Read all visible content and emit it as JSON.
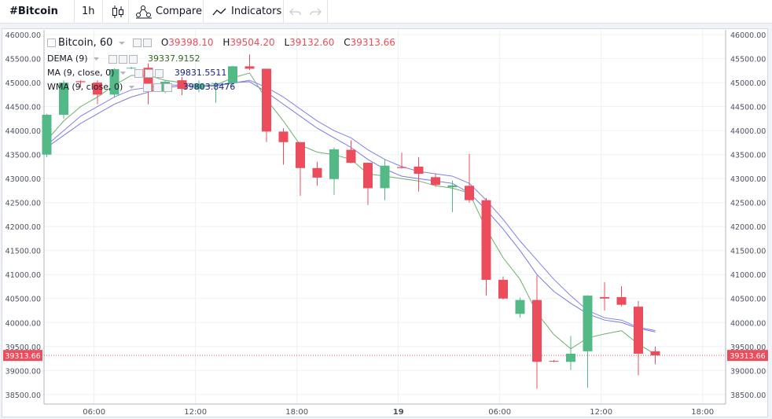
{
  "toolbar": {
    "symbol": "#Bitcoin",
    "interval": "1h",
    "compare_label": "Compare",
    "indicators_label": "Indicators"
  },
  "legend": {
    "title": "Bitcoin, 60",
    "ohlc": {
      "o_label": "O",
      "o": "39398.10",
      "h_label": "H",
      "h": "39504.20",
      "l_label": "L",
      "l": "39132.60",
      "c_label": "C",
      "c": "39313.66"
    },
    "indicators": [
      {
        "name": "DEMA (9)",
        "value": "39337.9152",
        "color": "#33691e"
      },
      {
        "name": "MA (9, close, 0)",
        "value": "39831.5511",
        "color": "#1a237e"
      },
      {
        "name": "WMA (9, close, 0)",
        "value": "39803.8476",
        "color": "#1a237e"
      }
    ]
  },
  "chart_data": {
    "type": "candlestick",
    "title": "Bitcoin, 60",
    "y_range": [
      38300,
      46100
    ],
    "y_ticks": [
      "46000.00",
      "45500.00",
      "45000.00",
      "44500.00",
      "44000.00",
      "43500.00",
      "43000.00",
      "42500.00",
      "42000.00",
      "41500.00",
      "41000.00",
      "40500.00",
      "40000.00",
      "39500.00",
      "39000.00",
      "38500.00"
    ],
    "x_ticks": [
      {
        "label": "06:00",
        "bar": 2.8
      },
      {
        "label": "12:00",
        "bar": 8.8
      },
      {
        "label": "18:00",
        "bar": 14.8
      },
      {
        "label": "19",
        "bar": 20.8
      },
      {
        "label": "06:00",
        "bar": 26.8
      },
      {
        "label": "12:00",
        "bar": 32.8
      },
      {
        "label": "18:00",
        "bar": 38.8
      }
    ],
    "last_price": "39313.66",
    "colors": {
      "up": "#53b987",
      "down": "#eb4d5c",
      "dema": "#6ab06a",
      "ma": "#8080e8",
      "wma": "#7878e0",
      "last_line": "#eb4d5c"
    },
    "candles": [
      {
        "o": 43500,
        "h": 44350,
        "l": 43450,
        "c": 44330
      },
      {
        "o": 44330,
        "h": 45050,
        "l": 44250,
        "c": 45000
      },
      {
        "o": 45030,
        "h": 45050,
        "l": 44900,
        "c": 45010
      },
      {
        "o": 45000,
        "h": 45050,
        "l": 44550,
        "c": 44750
      },
      {
        "o": 44750,
        "h": 45300,
        "l": 44700,
        "c": 45280
      },
      {
        "o": 45300,
        "h": 45330,
        "l": 45280,
        "c": 45310
      },
      {
        "o": 45310,
        "h": 45400,
        "l": 44550,
        "c": 44810
      },
      {
        "o": 44810,
        "h": 45050,
        "l": 44780,
        "c": 45020
      },
      {
        "o": 45050,
        "h": 45120,
        "l": 44740,
        "c": 44870
      },
      {
        "o": 44870,
        "h": 45050,
        "l": 44800,
        "c": 44980
      },
      {
        "o": 44980,
        "h": 45010,
        "l": 44580,
        "c": 44990
      },
      {
        "o": 44990,
        "h": 45350,
        "l": 44900,
        "c": 45340
      },
      {
        "o": 45340,
        "h": 45590,
        "l": 45260,
        "c": 45290
      },
      {
        "o": 45290,
        "h": 45290,
        "l": 43760,
        "c": 43980
      },
      {
        "o": 43980,
        "h": 44050,
        "l": 43290,
        "c": 43760
      },
      {
        "o": 43760,
        "h": 43760,
        "l": 42640,
        "c": 43220
      },
      {
        "o": 43220,
        "h": 43350,
        "l": 42850,
        "c": 43020
      },
      {
        "o": 42990,
        "h": 43650,
        "l": 42660,
        "c": 43610
      },
      {
        "o": 43600,
        "h": 43800,
        "l": 43320,
        "c": 43330
      },
      {
        "o": 43330,
        "h": 43330,
        "l": 42450,
        "c": 42800
      },
      {
        "o": 42800,
        "h": 43400,
        "l": 42550,
        "c": 43270
      },
      {
        "o": 43240,
        "h": 43540,
        "l": 43210,
        "c": 43220
      },
      {
        "o": 43250,
        "h": 43450,
        "l": 42730,
        "c": 43100
      },
      {
        "o": 43030,
        "h": 43100,
        "l": 42830,
        "c": 42870
      },
      {
        "o": 42820,
        "h": 42960,
        "l": 42300,
        "c": 42860
      },
      {
        "o": 42850,
        "h": 43510,
        "l": 42500,
        "c": 42550
      },
      {
        "o": 42550,
        "h": 42600,
        "l": 40560,
        "c": 40890
      },
      {
        "o": 40890,
        "h": 40960,
        "l": 40480,
        "c": 40500
      },
      {
        "o": 40180,
        "h": 40520,
        "l": 40100,
        "c": 40470
      },
      {
        "o": 40470,
        "h": 40980,
        "l": 38620,
        "c": 39180
      },
      {
        "o": 39200,
        "h": 39220,
        "l": 39170,
        "c": 39190
      },
      {
        "o": 39180,
        "h": 39720,
        "l": 39010,
        "c": 39350
      },
      {
        "o": 39400,
        "h": 40570,
        "l": 38640,
        "c": 40560
      },
      {
        "o": 40530,
        "h": 40840,
        "l": 40250,
        "c": 40500
      },
      {
        "o": 40530,
        "h": 40760,
        "l": 40340,
        "c": 40370
      },
      {
        "o": 40330,
        "h": 40450,
        "l": 38900,
        "c": 39350
      },
      {
        "o": 39400,
        "h": 39500,
        "l": 39130,
        "c": 39314
      }
    ],
    "dema": [
      43800,
      44200,
      44500,
      44700,
      44950,
      45150,
      45150,
      45050,
      45000,
      44950,
      44950,
      45100,
      45200,
      44650,
      44200,
      43700,
      43550,
      43500,
      43400,
      43100,
      43050,
      43000,
      42950,
      42850,
      42800,
      42700,
      41950,
      41350,
      40900,
      40200,
      39750,
      39450,
      39680,
      39760,
      39830,
      39550,
      39338
    ],
    "ma": [
      43700,
      44000,
      44300,
      44500,
      44700,
      44850,
      44900,
      44950,
      44950,
      44920,
      44930,
      44990,
      45050,
      44900,
      44700,
      44450,
      44200,
      44000,
      43850,
      43600,
      43400,
      43250,
      43150,
      43100,
      43050,
      42900,
      42550,
      42150,
      41700,
      41300,
      40900,
      40560,
      40250,
      40100,
      40050,
      39900,
      39832
    ],
    "wma": [
      43650,
      43900,
      44150,
      44350,
      44550,
      44700,
      44800,
      44900,
      44930,
      44920,
      44940,
      45000,
      45020,
      44800,
      44550,
      44300,
      44050,
      43850,
      43650,
      43400,
      43200,
      43050,
      43000,
      42950,
      42900,
      42700,
      42350,
      41950,
      41500,
      41000,
      40650,
      40400,
      40180,
      40050,
      40000,
      39880,
      39804
    ]
  }
}
